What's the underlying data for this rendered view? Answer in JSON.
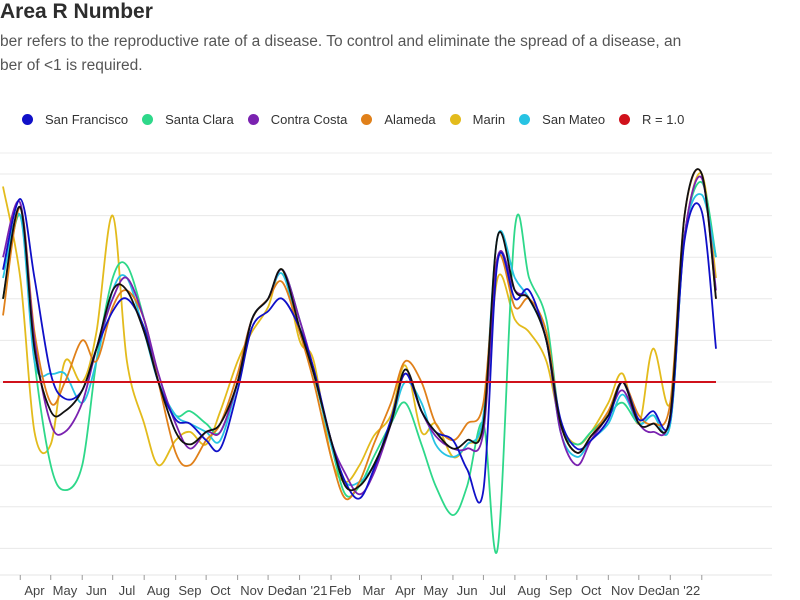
{
  "header": {
    "title": "Area R Number",
    "subtitle_line1": "ber refers to the reproductive rate of a disease. To control and eliminate the spread of a disease, an",
    "subtitle_line2": "ber of <1 is required."
  },
  "chart_data": {
    "type": "line",
    "title": "Area R Number",
    "xlabel": "",
    "ylabel": "",
    "ylim": [
      0.55,
      1.55
    ],
    "grid": true,
    "legend_position": "top",
    "x": [
      "2020-03-15",
      "2020-04-01",
      "2020-04-15",
      "2020-05-01",
      "2020-05-15",
      "2020-06-01",
      "2020-06-15",
      "2020-07-01",
      "2020-07-15",
      "2020-08-01",
      "2020-08-15",
      "2020-09-01",
      "2020-09-15",
      "2020-10-01",
      "2020-10-15",
      "2020-11-01",
      "2020-11-15",
      "2020-12-01",
      "2020-12-15",
      "2021-01-01",
      "2021-01-15",
      "2021-02-01",
      "2021-02-15",
      "2021-03-01",
      "2021-03-15",
      "2021-04-01",
      "2021-04-15",
      "2021-05-01",
      "2021-05-15",
      "2021-06-01",
      "2021-06-15",
      "2021-07-01",
      "2021-07-15",
      "2021-08-01",
      "2021-08-15",
      "2021-09-01",
      "2021-09-15",
      "2021-10-01",
      "2021-10-15",
      "2021-11-01",
      "2021-11-15",
      "2021-12-01",
      "2021-12-15",
      "2022-01-01",
      "2022-01-15",
      "2022-02-01",
      "2022-02-15"
    ],
    "x_ticks": [
      {
        "date": "2020-04-15",
        "label": "Apr"
      },
      {
        "date": "2020-05-15",
        "label": "May"
      },
      {
        "date": "2020-06-15",
        "label": "Jun"
      },
      {
        "date": "2020-07-15",
        "label": "Jul"
      },
      {
        "date": "2020-08-15",
        "label": "Aug"
      },
      {
        "date": "2020-09-15",
        "label": "Sep"
      },
      {
        "date": "2020-10-15",
        "label": "Oct"
      },
      {
        "date": "2020-11-15",
        "label": "Nov"
      },
      {
        "date": "2020-12-12",
        "label": "Dec"
      },
      {
        "date": "2021-01-08",
        "label": "Jan '21"
      },
      {
        "date": "2021-02-10",
        "label": "Feb"
      },
      {
        "date": "2021-03-15",
        "label": "Mar"
      },
      {
        "date": "2021-04-15",
        "label": "Apr"
      },
      {
        "date": "2021-05-15",
        "label": "May"
      },
      {
        "date": "2021-06-15",
        "label": "Jun"
      },
      {
        "date": "2021-07-15",
        "label": "Jul"
      },
      {
        "date": "2021-08-15",
        "label": "Aug"
      },
      {
        "date": "2021-09-15",
        "label": "Sep"
      },
      {
        "date": "2021-10-15",
        "label": "Oct"
      },
      {
        "date": "2021-11-15",
        "label": "Nov"
      },
      {
        "date": "2021-12-12",
        "label": "Dec"
      },
      {
        "date": "2022-01-10",
        "label": "Jan '22"
      }
    ],
    "reference_line": {
      "name": "R = 1.0",
      "value": 1.0,
      "color": "#d0111b"
    },
    "series": [
      {
        "name": "San Francisco",
        "color": "#1010c8",
        "values": [
          1.27,
          1.44,
          1.25,
          1.02,
          0.96,
          0.98,
          1.08,
          1.17,
          1.2,
          1.13,
          1.0,
          0.91,
          0.9,
          0.86,
          0.84,
          0.98,
          1.13,
          1.17,
          1.2,
          1.13,
          1.03,
          0.86,
          0.76,
          0.72,
          0.79,
          0.91,
          1.02,
          0.93,
          0.88,
          0.86,
          0.79,
          0.74,
          1.29,
          1.2,
          1.22,
          1.1,
          0.91,
          0.84,
          0.86,
          0.91,
          1.0,
          0.91,
          0.93,
          0.91,
          1.34,
          1.41,
          1.08
        ]
      },
      {
        "name": "Santa Clara",
        "color": "#2ed88a",
        "values": [
          1.2,
          1.4,
          1.05,
          0.8,
          0.74,
          0.8,
          1.05,
          1.25,
          1.28,
          1.15,
          1.0,
          0.92,
          0.93,
          0.9,
          0.88,
          1.0,
          1.15,
          1.2,
          1.27,
          1.15,
          1.02,
          0.85,
          0.73,
          0.75,
          0.82,
          0.9,
          0.95,
          0.85,
          0.75,
          0.68,
          0.75,
          0.9,
          0.6,
          1.37,
          1.25,
          1.15,
          0.9,
          0.85,
          0.88,
          0.92,
          0.95,
          0.9,
          0.92,
          0.9,
          1.35,
          1.48,
          1.3
        ]
      },
      {
        "name": "Contra Costa",
        "color": "#7a22b0",
        "values": [
          1.3,
          1.43,
          1.1,
          0.9,
          0.88,
          0.95,
          1.08,
          1.2,
          1.25,
          1.15,
          1.02,
          0.9,
          0.84,
          0.88,
          0.88,
          1.0,
          1.15,
          1.2,
          1.27,
          1.15,
          1.03,
          0.86,
          0.78,
          0.73,
          0.78,
          0.9,
          1.02,
          0.93,
          0.87,
          0.84,
          0.84,
          0.88,
          1.3,
          1.22,
          1.2,
          1.1,
          0.88,
          0.8,
          0.86,
          0.92,
          0.98,
          0.9,
          0.88,
          0.92,
          1.35,
          1.49,
          1.22
        ]
      },
      {
        "name": "Alameda",
        "color": "#e0801a",
        "values": [
          1.16,
          1.42,
          1.12,
          0.95,
          1.0,
          1.1,
          1.05,
          1.18,
          1.22,
          1.15,
          1.0,
          0.83,
          0.8,
          0.86,
          0.9,
          1.02,
          1.15,
          1.2,
          1.24,
          1.12,
          1.0,
          0.82,
          0.72,
          0.76,
          0.85,
          0.95,
          1.05,
          1.0,
          0.9,
          0.86,
          0.9,
          0.95,
          1.3,
          1.18,
          1.2,
          1.12,
          0.9,
          0.83,
          0.87,
          0.93,
          1.0,
          0.92,
          0.9,
          0.95,
          1.4,
          1.5,
          1.2
        ]
      },
      {
        "name": "Marin",
        "color": "#e3bb1c",
        "values": [
          1.47,
          1.25,
          0.88,
          0.85,
          1.05,
          1.0,
          1.12,
          1.4,
          1.05,
          0.9,
          0.8,
          0.86,
          0.88,
          0.85,
          0.93,
          1.05,
          1.12,
          1.18,
          1.27,
          1.1,
          1.05,
          0.82,
          0.76,
          0.8,
          0.87,
          0.92,
          1.04,
          0.88,
          0.9,
          0.82,
          0.85,
          0.9,
          1.25,
          1.15,
          1.12,
          1.05,
          0.9,
          0.85,
          0.88,
          0.95,
          1.02,
          0.9,
          1.08,
          0.95,
          1.35,
          1.5,
          1.25
        ]
      },
      {
        "name": "San Mateo",
        "color": "#27c3e3",
        "values": [
          1.25,
          1.4,
          1.05,
          1.02,
          1.02,
          0.95,
          1.05,
          1.22,
          1.25,
          1.12,
          1.0,
          0.92,
          0.9,
          0.88,
          0.86,
          1.0,
          1.15,
          1.2,
          1.26,
          1.12,
          1.02,
          0.85,
          0.76,
          0.76,
          0.8,
          0.9,
          1.0,
          0.95,
          0.85,
          0.82,
          0.85,
          0.92,
          1.35,
          1.25,
          1.2,
          1.1,
          0.88,
          0.82,
          0.86,
          0.9,
          0.97,
          0.9,
          0.92,
          0.9,
          1.35,
          1.45,
          1.3
        ]
      },
      {
        "color": "#111111",
        "values": [
          1.2,
          1.42,
          1.08,
          0.93,
          0.93,
          0.98,
          1.08,
          1.22,
          1.22,
          1.12,
          1.0,
          0.88,
          0.85,
          0.88,
          0.9,
          1.0,
          1.15,
          1.2,
          1.27,
          1.13,
          1.02,
          0.86,
          0.75,
          0.75,
          0.8,
          0.9,
          1.03,
          0.93,
          0.88,
          0.84,
          0.86,
          0.9,
          1.35,
          1.22,
          1.2,
          1.1,
          0.9,
          0.83,
          0.87,
          0.92,
          1.0,
          0.9,
          0.9,
          0.92,
          1.4,
          1.5,
          1.2
        ]
      }
    ]
  }
}
